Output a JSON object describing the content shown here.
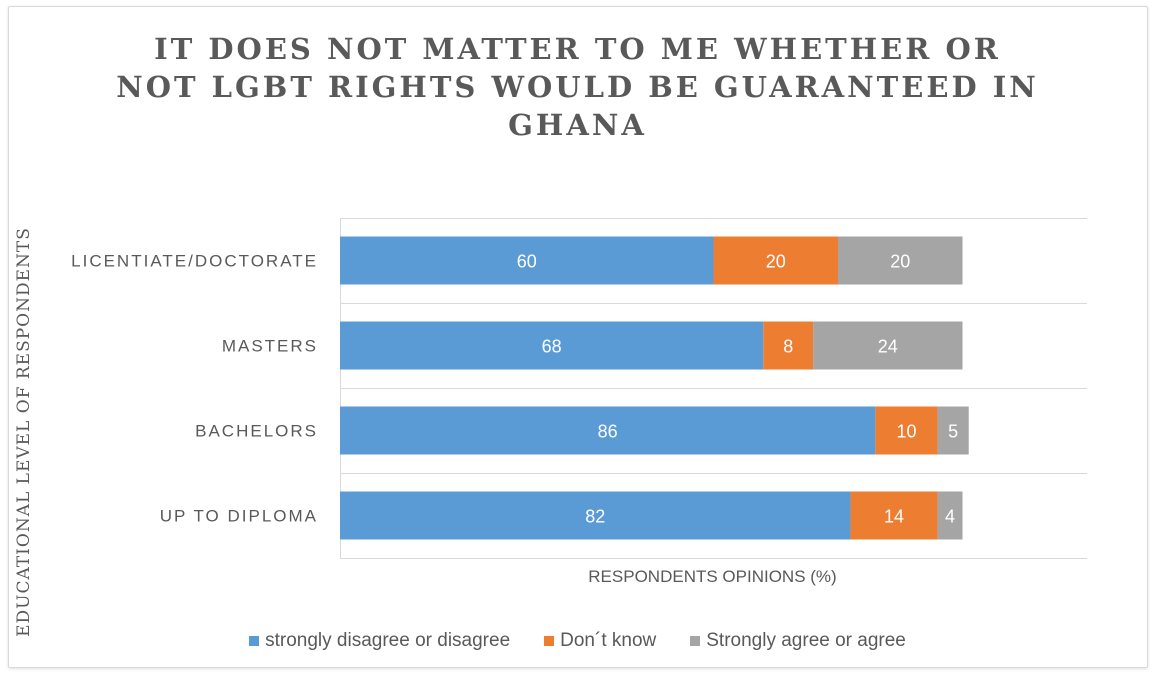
{
  "chart_data": {
    "type": "bar",
    "orientation": "horizontal",
    "stacked": true,
    "title_lines": [
      "IT DOES NOT MATTER TO ME WHETHER OR",
      "NOT LGBT RIGHTS WOULD BE GUARANTEED IN",
      "GHANA"
    ],
    "ylabel": "EDUCATIONAL  LEVEL OF RESPONDENTS",
    "xlabel": "RESPONDENTS OPINIONS (%)",
    "categories": [
      "LICENTIATE/DOCTORATE",
      "MASTERS",
      "BACHELORS",
      "UP TO DIPLOMA"
    ],
    "series": [
      {
        "name": "strongly disagree or disagree",
        "color": "#5b9bd5",
        "values": [
          60,
          68,
          86,
          82
        ]
      },
      {
        "name": "Don´t know",
        "color": "#ed7d31",
        "values": [
          20,
          8,
          10,
          14
        ]
      },
      {
        "name": "Strongly agree or agree",
        "color": "#a5a5a5",
        "values": [
          20,
          24,
          5,
          4
        ]
      }
    ],
    "xlim": [
      0,
      120
    ],
    "grid": true,
    "legend_position": "bottom"
  }
}
